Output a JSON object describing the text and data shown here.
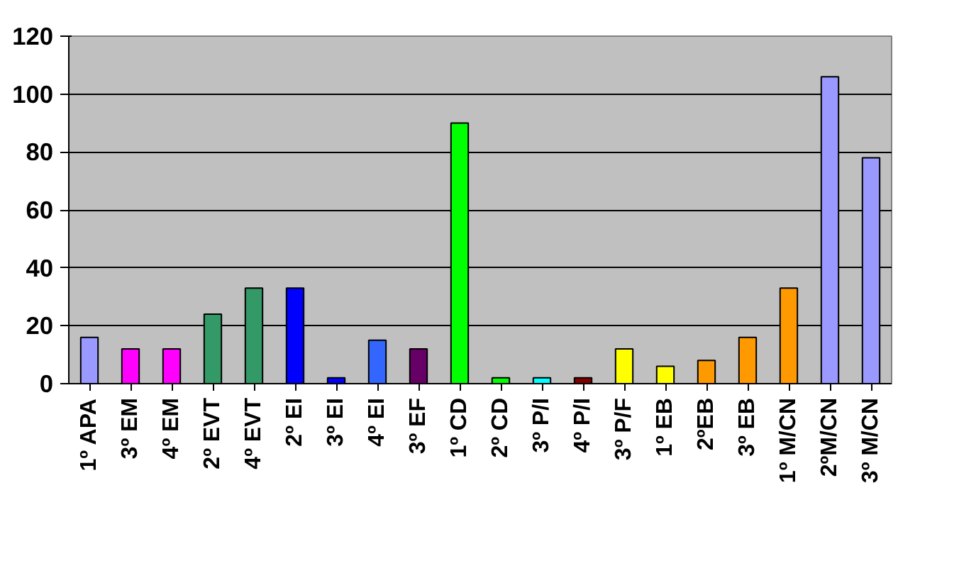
{
  "chart_data": {
    "type": "bar",
    "categories": [
      "1º APA",
      "3º EM",
      "4º EM",
      "2º EVT",
      "4º EVT",
      "2º EI",
      "3º EI",
      "4º EI",
      "3º EF",
      "1º CD",
      "2º CD",
      "3º P/I",
      "4º P/I",
      "3º P/F",
      "1º EB",
      "2ºEB",
      "3º EB",
      "1º M/CN",
      "2ºM/CN",
      "3º M/CN"
    ],
    "values": [
      16,
      12,
      12,
      24,
      33,
      33,
      2,
      15,
      12,
      90,
      2,
      2,
      2,
      12,
      6,
      8,
      16,
      33,
      106,
      78
    ],
    "colors": [
      "#9999ff",
      "#ff00ff",
      "#ff00ff",
      "#339966",
      "#339966",
      "#0000ff",
      "#0000ff",
      "#3366ff",
      "#660066",
      "#00ff00",
      "#00ff00",
      "#00ffff",
      "#800000",
      "#ffff00",
      "#ffff00",
      "#ff9900",
      "#ff9900",
      "#ff9900",
      "#9999ff",
      "#9999ff"
    ],
    "ylim": [
      0,
      120
    ],
    "yticks": [
      0,
      20,
      40,
      60,
      80,
      100,
      120
    ],
    "grid": "y"
  }
}
